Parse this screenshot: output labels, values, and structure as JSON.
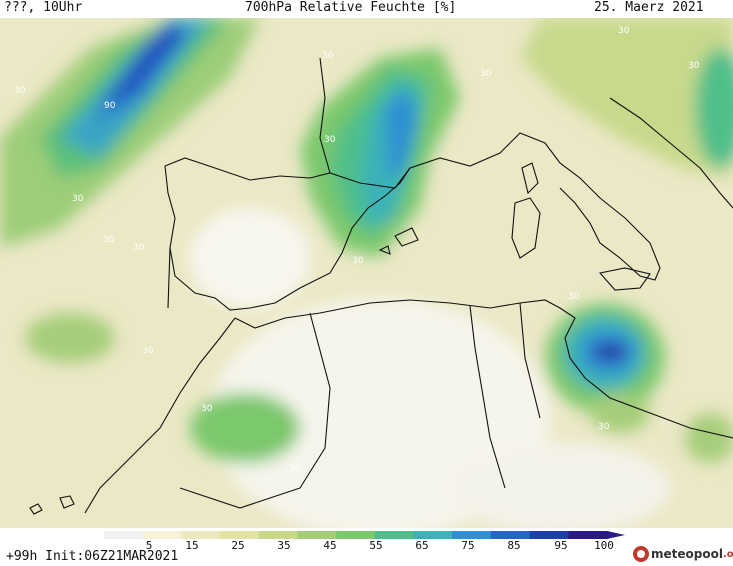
{
  "header": {
    "left": "???, 10Uhr",
    "title": "700hPa Relative Feuchte [%]",
    "date": "25. Maerz 2021"
  },
  "footer": {
    "forecast": "+99h",
    "init": "Init:06Z21MAR2021",
    "logo_text": "meteopool",
    "logo_suffix": ".org"
  },
  "colorbar": {
    "ticks": [
      "5",
      "15",
      "25",
      "35",
      "45",
      "55",
      "65",
      "75",
      "85",
      "95",
      "100"
    ],
    "colors": [
      "#f0f0f0",
      "#f5f2d8",
      "#ede9bf",
      "#dfe3a6",
      "#c8d98c",
      "#a6cd7a",
      "#7cc86c",
      "#4fbf8a",
      "#3ab2b8",
      "#2f8fd4",
      "#2364c8",
      "#1c3fae",
      "#2a1a86"
    ]
  },
  "contour_labels": [
    "30",
    "90"
  ],
  "colors": {
    "land_bg": "#efedcf",
    "desert": "#f6f5ec",
    "coast": "#111111"
  }
}
